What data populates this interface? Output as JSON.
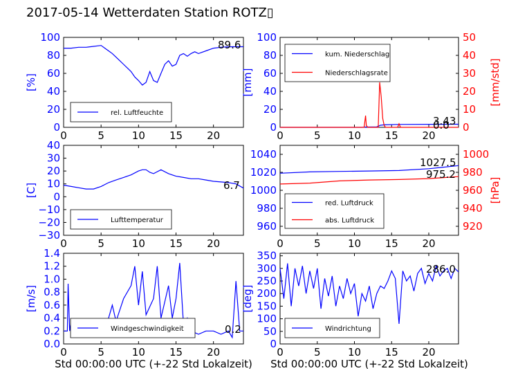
{
  "title": "2017-05-14 Wetterdaten Station ROTZ▯",
  "colors": {
    "left_axis": "#0000ff",
    "right_axis": "#ff0000",
    "series_blue": "#0000ff",
    "series_red": "#ff0000",
    "wind_light": "#8080ff"
  },
  "chart_data": [
    {
      "id": "humidity",
      "type": "line",
      "ylabel": "[%]",
      "xlabel": "",
      "xlim": [
        0,
        24
      ],
      "ylim": [
        0,
        100
      ],
      "xticks": [
        "0",
        "5",
        "10",
        "15",
        "20"
      ],
      "yticks": [
        "0",
        "20",
        "40",
        "60",
        "80",
        "100"
      ],
      "legend": [
        "rel. Luftfeuchte"
      ],
      "legend_position": "lower-left",
      "annotations": [
        "89.6"
      ],
      "series": [
        {
          "name": "rel. Luftfeuchte",
          "x": [
            0,
            1,
            2,
            3,
            4,
            5,
            5.5,
            6,
            6.5,
            7,
            7.5,
            8,
            8.5,
            9,
            9.5,
            10,
            10.5,
            11,
            11.5,
            12,
            12.5,
            13,
            13.5,
            14,
            14.5,
            15,
            15.5,
            16,
            16.5,
            17,
            17.5,
            18,
            19,
            20,
            21,
            22,
            23,
            24
          ],
          "y": [
            88,
            88,
            89,
            89,
            90,
            91,
            88,
            85,
            82,
            78,
            74,
            70,
            66,
            62,
            56,
            52,
            47,
            50,
            62,
            52,
            50,
            60,
            70,
            74,
            68,
            70,
            80,
            82,
            79,
            82,
            84,
            82,
            85,
            88,
            89,
            89.5,
            89.6,
            89.6
          ]
        }
      ]
    },
    {
      "id": "rain",
      "type": "line",
      "ylabel": "[mm]",
      "ylabel_right": "[mm/std]",
      "xlabel": "",
      "xlim": [
        0,
        24
      ],
      "ylim": [
        0,
        100
      ],
      "ylim_right": [
        0,
        50
      ],
      "xticks": [
        "0",
        "5",
        "10",
        "15",
        "20"
      ],
      "yticks": [
        "0",
        "20",
        "40",
        "60",
        "80",
        "100"
      ],
      "yticks_right": [
        "0",
        "10",
        "20",
        "30",
        "40",
        "50"
      ],
      "legend": [
        "kum. Niederschlag",
        "Niederschlagsrate"
      ],
      "legend_position": "upper-left",
      "annotations": [
        "3.43",
        "0.0"
      ],
      "series": [
        {
          "name": "kum. Niederschlag",
          "axis": "left",
          "x": [
            0,
            11,
            11.5,
            13,
            13.5,
            14,
            16,
            24
          ],
          "y": [
            0,
            0,
            0.3,
            0.5,
            2.3,
            2.8,
            3.2,
            3.43
          ]
        },
        {
          "name": "Niederschlagsrate",
          "axis": "right",
          "x": [
            0,
            11.3,
            11.5,
            11.6,
            11.8,
            13.2,
            13.4,
            13.5,
            13.6,
            13.8,
            14,
            14.2,
            15.8,
            16,
            16.2,
            24
          ],
          "y": [
            0,
            0,
            6.5,
            1,
            0,
            0,
            25,
            21,
            17,
            5,
            1,
            0,
            0,
            2,
            0,
            0
          ]
        }
      ]
    },
    {
      "id": "temperature",
      "type": "line",
      "ylabel": "[C]",
      "xlabel": "",
      "xlim": [
        0,
        24
      ],
      "ylim": [
        -30,
        40
      ],
      "xticks": [
        "0",
        "5",
        "10",
        "15",
        "20"
      ],
      "yticks": [
        "−30",
        "−20",
        "−10",
        "0",
        "10",
        "20",
        "30",
        "40"
      ],
      "legend": [
        "Lufttemperatur"
      ],
      "legend_position": "lower-left",
      "annotations": [
        "6.7"
      ],
      "series": [
        {
          "name": "Lufttemperatur",
          "x": [
            0,
            1,
            2,
            3,
            4,
            5,
            6,
            7,
            8,
            9,
            10,
            10.5,
            11,
            11.5,
            12,
            13,
            14,
            15,
            16,
            17,
            18,
            19,
            20,
            21,
            22,
            23,
            24
          ],
          "y": [
            9,
            8,
            7,
            6,
            6,
            8,
            11,
            13,
            15,
            17,
            20,
            21,
            21,
            19,
            18,
            21,
            18,
            16,
            15,
            14,
            14,
            13,
            12,
            11.5,
            11,
            10,
            6.7
          ]
        }
      ]
    },
    {
      "id": "pressure",
      "type": "line",
      "ylabel": "",
      "ylabel_right": "[hPa]",
      "xlabel": "",
      "xlim": [
        0,
        24
      ],
      "ylim": [
        950,
        1050
      ],
      "ylim_right": [
        910,
        1010
      ],
      "xticks": [
        "0",
        "5",
        "10",
        "15",
        "20"
      ],
      "yticks": [
        "960",
        "980",
        "1000",
        "1020",
        "1040"
      ],
      "yticks_right": [
        "920",
        "940",
        "960",
        "980",
        "1000"
      ],
      "legend": [
        "red. Luftdruck",
        "abs. Luftdruck"
      ],
      "legend_position": "lower-left",
      "annotations": [
        "1027.5",
        "975.2"
      ],
      "series": [
        {
          "name": "red. Luftdruck",
          "axis": "left",
          "x": [
            0,
            4,
            8,
            12,
            16,
            20,
            24
          ],
          "y": [
            1019,
            1020.5,
            1021,
            1021.5,
            1022,
            1024,
            1027.5
          ]
        },
        {
          "name": "abs. Luftdruck",
          "axis": "right",
          "x": [
            0,
            4,
            8,
            12,
            16,
            20,
            24
          ],
          "y": [
            967,
            968,
            970.5,
            971.5,
            972,
            973,
            975.2
          ]
        }
      ]
    },
    {
      "id": "wind_speed",
      "type": "line",
      "ylabel": "[m/s]",
      "xlabel": "Std 00:00:00 UTC (+-22 Std Lokalzeit)",
      "xlim": [
        0,
        24
      ],
      "ylim": [
        0,
        1.4
      ],
      "xticks": [
        "0",
        "5",
        "10",
        "15",
        "20"
      ],
      "yticks": [
        "0.0",
        "0.2",
        "0.4",
        "0.6",
        "0.8",
        "1.0",
        "1.2",
        "1.4"
      ],
      "legend": [
        "Windgeschwindigkeit"
      ],
      "legend_position": "lower-left",
      "annotations": [
        "0.2"
      ],
      "series": [
        {
          "name": "Windgeschwindigkeit",
          "x": [
            0,
            0.5,
            0.6,
            0.8,
            1,
            1.5,
            2,
            3,
            4,
            5,
            6,
            6.5,
            7,
            8,
            9,
            9.5,
            10,
            10.5,
            11,
            12,
            12.5,
            13,
            14,
            14.5,
            15,
            15.5,
            16,
            16.5,
            17,
            18,
            19,
            20,
            21,
            22,
            22.5,
            23,
            23.5,
            24
          ],
          "y": [
            0.2,
            0.2,
            0.93,
            0.2,
            0.35,
            0.15,
            0.25,
            0.2,
            0.3,
            0.25,
            0.4,
            0.6,
            0.35,
            0.7,
            0.9,
            1.2,
            0.6,
            1.12,
            0.45,
            0.7,
            1.2,
            0.4,
            0.9,
            0.4,
            0.7,
            1.25,
            0.3,
            0.4,
            0.2,
            0.15,
            0.2,
            0.2,
            0.15,
            0.2,
            0.1,
            0.97,
            0.2,
            0.2
          ]
        }
      ]
    },
    {
      "id": "wind_direction",
      "type": "line",
      "ylabel": "[deg]",
      "xlabel": "Std 00:00:00 UTC (+-22 Std Lokalzeit)",
      "xlim": [
        0,
        24
      ],
      "ylim": [
        0,
        360
      ],
      "xticks": [
        "0",
        "5",
        "10",
        "15",
        "20"
      ],
      "yticks": [
        "0",
        "50",
        "100",
        "150",
        "200",
        "250",
        "300",
        "350"
      ],
      "legend": [
        "Windrichtung"
      ],
      "legend_position": "lower-left",
      "annotations": [
        "286.0"
      ],
      "series": [
        {
          "name": "Windrichtung",
          "x": [
            0,
            0.5,
            1,
            1.5,
            2,
            2.5,
            3,
            3.5,
            4,
            4.5,
            5,
            5.5,
            6,
            6.5,
            7,
            7.5,
            8,
            8.5,
            9,
            9.5,
            10,
            10.5,
            11,
            11.5,
            12,
            12.5,
            13,
            13.5,
            14,
            14.5,
            15,
            15.5,
            16,
            16.5,
            17,
            17.5,
            18,
            18.5,
            19,
            19.5,
            20,
            20.5,
            21,
            21.5,
            22,
            22.5,
            23,
            23.5,
            24
          ],
          "y": [
            300,
            180,
            320,
            150,
            300,
            230,
            310,
            200,
            290,
            220,
            300,
            140,
            260,
            190,
            270,
            150,
            230,
            180,
            260,
            200,
            240,
            110,
            200,
            170,
            230,
            140,
            200,
            230,
            220,
            250,
            290,
            260,
            80,
            290,
            250,
            270,
            210,
            280,
            300,
            240,
            280,
            250,
            310,
            270,
            290,
            300,
            260,
            300,
            286
          ]
        }
      ]
    }
  ]
}
